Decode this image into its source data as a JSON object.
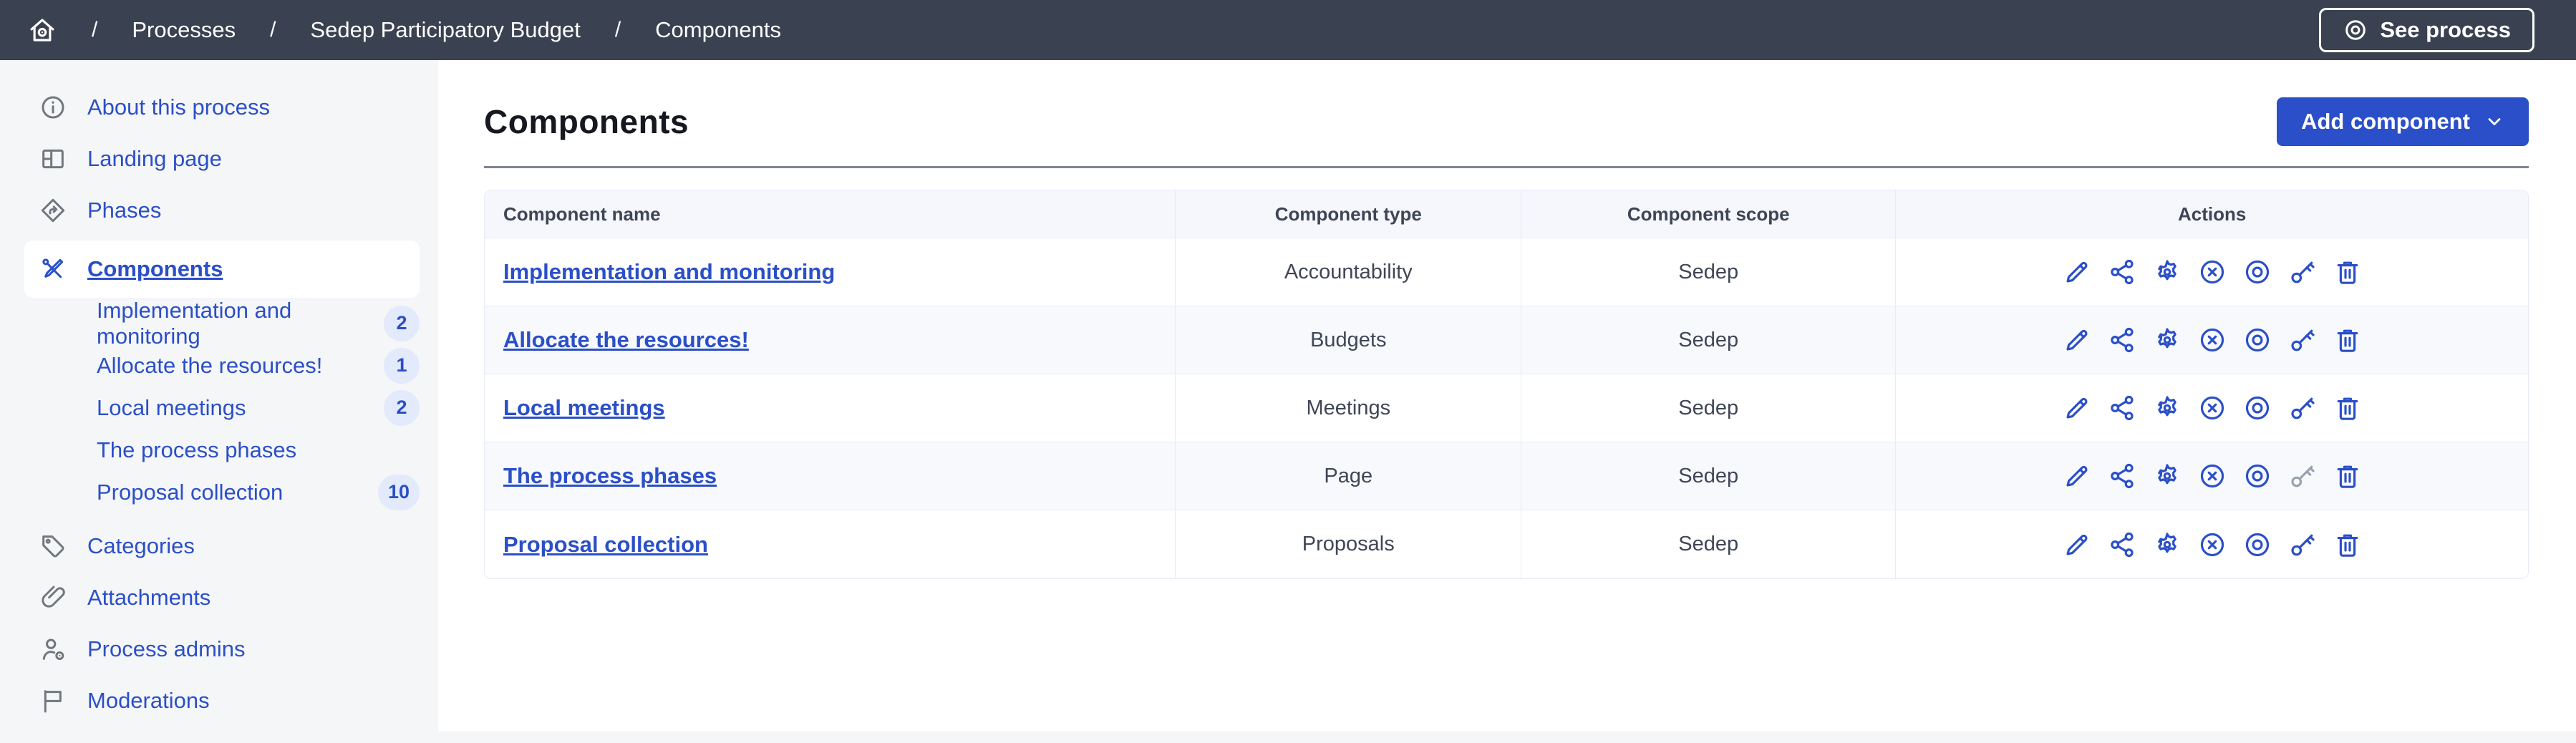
{
  "topbar": {
    "separator": "/",
    "breadcrumb": [
      {
        "label": "Processes"
      },
      {
        "label": "Sedep Participatory Budget"
      },
      {
        "label": "Components"
      }
    ],
    "see_process_label": "See process"
  },
  "sidebar": {
    "items": [
      {
        "label": "About this process",
        "icon": "info-icon",
        "active": false
      },
      {
        "label": "Landing page",
        "icon": "layout-icon",
        "active": false
      },
      {
        "label": "Phases",
        "icon": "phases-icon",
        "active": false
      },
      {
        "label": "Components",
        "icon": "tools-icon",
        "active": true,
        "children": [
          {
            "label": "Implementation and monitoring",
            "badge": "2"
          },
          {
            "label": "Allocate the resources!",
            "badge": "1"
          },
          {
            "label": "Local meetings",
            "badge": "2"
          },
          {
            "label": "The process phases",
            "badge": null
          },
          {
            "label": "Proposal collection",
            "badge": "10"
          }
        ]
      },
      {
        "label": "Categories",
        "icon": "tag-icon",
        "active": false
      },
      {
        "label": "Attachments",
        "icon": "paperclip-icon",
        "active": false
      },
      {
        "label": "Process admins",
        "icon": "user-gear-icon",
        "active": false
      },
      {
        "label": "Moderations",
        "icon": "flag-icon",
        "active": false
      }
    ]
  },
  "main": {
    "title": "Components",
    "add_component_label": "Add component",
    "table": {
      "headers": [
        "Component name",
        "Component type",
        "Component scope",
        "Actions"
      ],
      "actions": [
        "edit-icon",
        "share-icon",
        "settings-icon",
        "unpublish-icon",
        "preview-icon",
        "permissions-icon",
        "delete-icon"
      ],
      "rows": [
        {
          "name": "Implementation and monitoring",
          "type": "Accountability",
          "scope": "Sedep",
          "permissions_disabled": false
        },
        {
          "name": "Allocate the resources!",
          "type": "Budgets",
          "scope": "Sedep",
          "permissions_disabled": false
        },
        {
          "name": "Local meetings",
          "type": "Meetings",
          "scope": "Sedep",
          "permissions_disabled": false
        },
        {
          "name": "The process phases",
          "type": "Page",
          "scope": "Sedep",
          "permissions_disabled": true
        },
        {
          "name": "Proposal collection",
          "type": "Proposals",
          "scope": "Sedep",
          "permissions_disabled": false
        }
      ]
    }
  },
  "colors": {
    "topbar_bg": "#3a4150",
    "accent_blue": "#2b4fc8",
    "sidebar_bg": "#f5f6f8",
    "badge_bg": "#e3eafb",
    "row_alt_bg": "#f7f9fd",
    "table_border": "#e7ebf6",
    "divider": "#7f8591",
    "disabled_icon": "#9aa2ad"
  }
}
